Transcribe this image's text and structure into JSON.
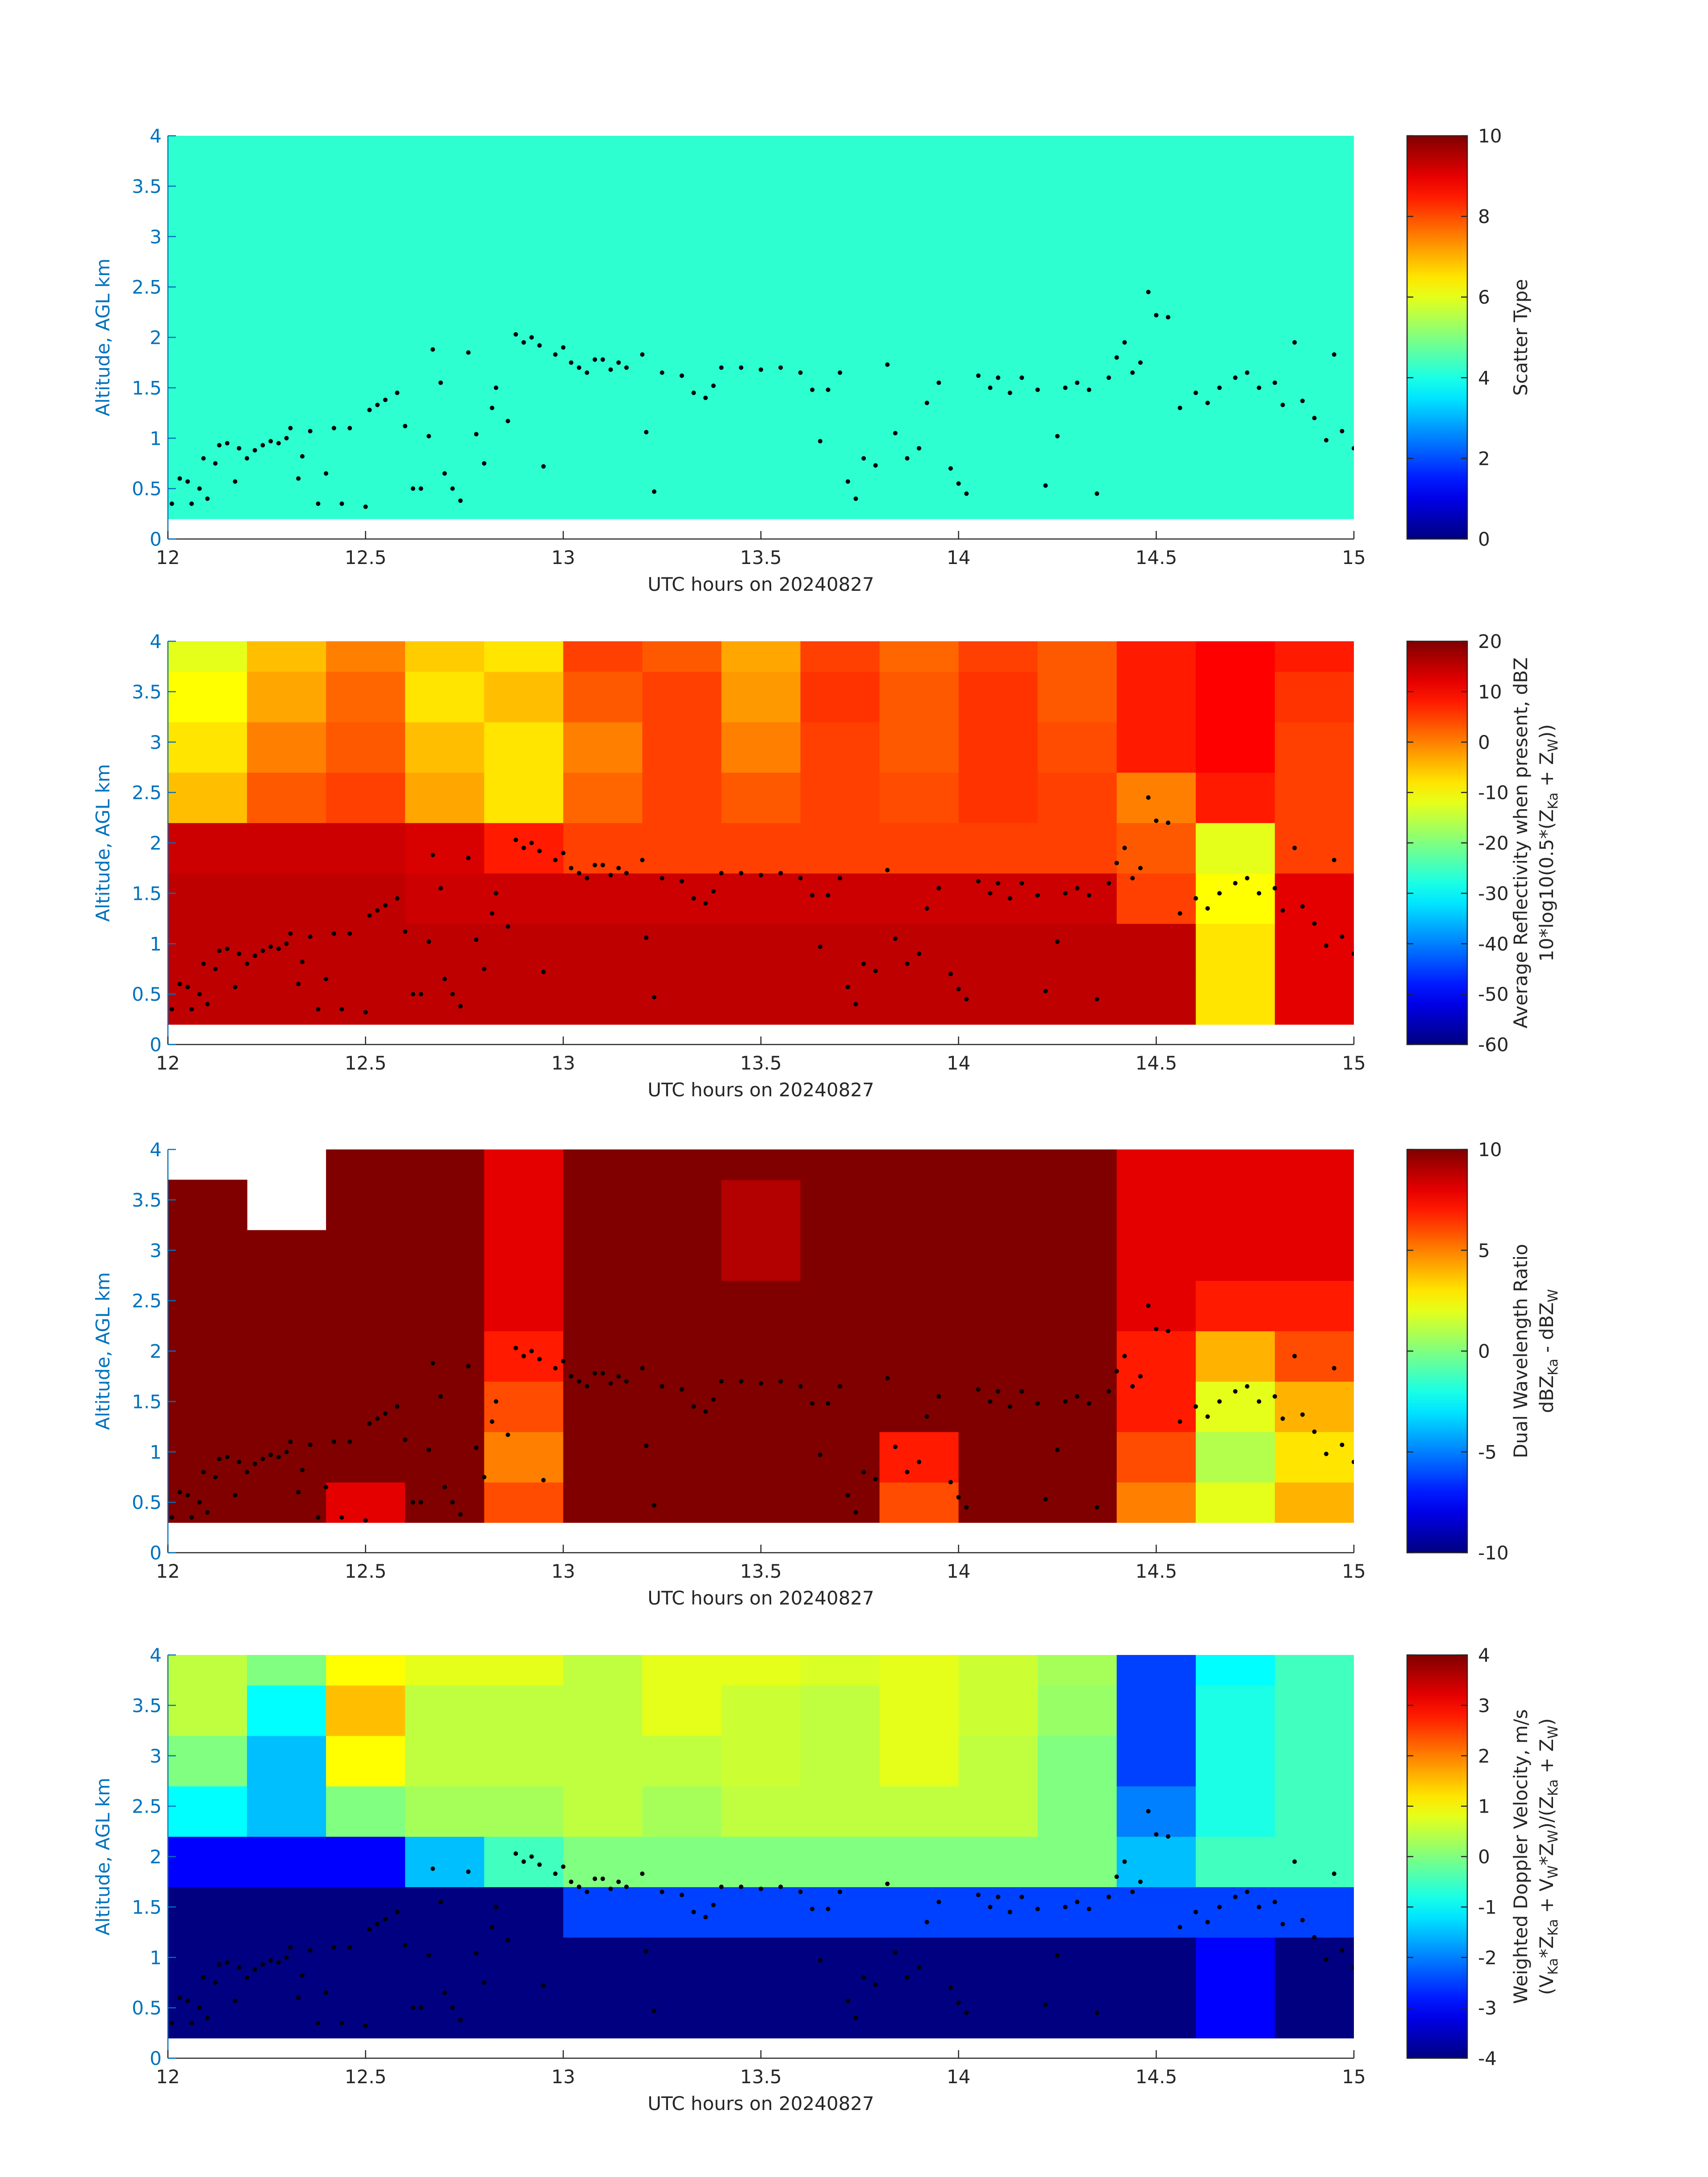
{
  "chart_data": [
    {
      "type": "heatmap",
      "colormap": "jet",
      "xlabel": "UTC hours on 20240827",
      "ylabel": "Altitude, AGL km",
      "colorbar_label": [
        [
          "Scatter Type"
        ]
      ],
      "xlim": [
        12,
        15
      ],
      "xticks": [
        12,
        12.5,
        13,
        13.5,
        14,
        14.5,
        15
      ],
      "ylim": [
        0,
        4
      ],
      "yticks": [
        0,
        0.5,
        1,
        1.5,
        2,
        2.5,
        3,
        3.5,
        4
      ],
      "clim": [
        0,
        10
      ],
      "cticks": [
        0,
        2,
        4,
        6,
        8,
        10
      ],
      "xedges": [
        12,
        12.2,
        12.4,
        12.6,
        12.8,
        13,
        13.2,
        13.4,
        13.6,
        13.8,
        14,
        14.2,
        14.4,
        14.6,
        14.8,
        15
      ],
      "yedges": [
        0.2,
        0.7,
        1.2,
        1.7,
        2.2,
        2.7,
        3.2,
        3.7,
        4
      ],
      "z": [
        [
          4.2,
          4.2,
          4.2,
          4.2,
          4.2,
          4.2,
          4.2,
          4.2,
          4.2,
          4.2,
          4.2,
          4.2,
          4.2,
          4.2,
          4.2
        ],
        [
          4.2,
          4.2,
          4.2,
          4.2,
          4.2,
          4.2,
          4.2,
          4.2,
          4.2,
          4.2,
          4.2,
          4.2,
          4.2,
          4.2,
          4.2
        ],
        [
          4.2,
          4.2,
          4.2,
          4.2,
          4.2,
          4.2,
          4.2,
          4.2,
          4.2,
          4.2,
          4.2,
          4.2,
          4.2,
          4.2,
          4.2
        ],
        [
          4.2,
          4.2,
          4.2,
          4.2,
          4.2,
          4.2,
          4.2,
          4.2,
          4.2,
          4.2,
          4.2,
          4.2,
          4.2,
          4.2,
          4.2
        ],
        [
          4.2,
          4.2,
          4.2,
          4.2,
          4.2,
          4.2,
          4.2,
          4.2,
          4.2,
          4.2,
          4.2,
          4.2,
          4.2,
          4.2,
          4.2
        ],
        [
          4.2,
          4.2,
          4.2,
          4.2,
          4.2,
          4.2,
          4.2,
          4.2,
          4.2,
          4.2,
          4.2,
          4.2,
          4.2,
          4.2,
          4.2
        ],
        [
          4.2,
          4.2,
          4.2,
          4.2,
          4.2,
          4.2,
          4.2,
          4.2,
          4.2,
          4.2,
          4.2,
          4.2,
          4.2,
          4.2,
          4.2
        ],
        [
          4.2,
          4.2,
          4.2,
          4.2,
          4.2,
          4.2,
          4.2,
          4.2,
          4.2,
          4.2,
          4.2,
          4.2,
          4.2,
          4.2,
          4.2
        ]
      ],
      "points": {
        "x": [
          12.01,
          12.03,
          12.05,
          12.06,
          12.08,
          12.09,
          12.1,
          12.12,
          12.13,
          12.15,
          12.17,
          12.18,
          12.2,
          12.22,
          12.24,
          12.26,
          12.28,
          12.3,
          12.31,
          12.33,
          12.34,
          12.36,
          12.38,
          12.4,
          12.42,
          12.44,
          12.46,
          12.5,
          12.51,
          12.53,
          12.55,
          12.58,
          12.6,
          12.62,
          12.64,
          12.66,
          12.67,
          12.69,
          12.7,
          12.72,
          12.74,
          12.76,
          12.78,
          12.8,
          12.82,
          12.83,
          12.86,
          12.88,
          12.9,
          12.92,
          12.94,
          12.95,
          12.98,
          13.0,
          13.02,
          13.04,
          13.06,
          13.08,
          13.1,
          13.12,
          13.14,
          13.16,
          13.2,
          13.21,
          13.23,
          13.25,
          13.3,
          13.33,
          13.36,
          13.38,
          13.4,
          13.45,
          13.5,
          13.55,
          13.6,
          13.63,
          13.65,
          13.67,
          13.7,
          13.72,
          13.74,
          13.76,
          13.79,
          13.82,
          13.84,
          13.87,
          13.9,
          13.92,
          13.95,
          13.98,
          14.0,
          14.02,
          14.05,
          14.08,
          14.1,
          14.13,
          14.16,
          14.2,
          14.22,
          14.25,
          14.27,
          14.3,
          14.33,
          14.35,
          14.38,
          14.4,
          14.42,
          14.44,
          14.46,
          14.48,
          14.5,
          14.53,
          14.56,
          14.6,
          14.63,
          14.66,
          14.7,
          14.73,
          14.76,
          14.8,
          14.82,
          14.85,
          14.87,
          14.9,
          14.93,
          14.95,
          14.97,
          15.0
        ],
        "y": [
          0.35,
          0.6,
          0.57,
          0.35,
          0.5,
          0.8,
          0.4,
          0.75,
          0.93,
          0.95,
          0.57,
          0.9,
          0.8,
          0.88,
          0.93,
          0.97,
          0.95,
          1.0,
          1.1,
          0.6,
          0.82,
          1.07,
          0.35,
          0.65,
          1.1,
          0.35,
          1.1,
          0.32,
          1.28,
          1.33,
          1.38,
          1.45,
          1.12,
          0.5,
          0.5,
          1.02,
          1.88,
          1.55,
          0.65,
          0.5,
          0.38,
          1.85,
          1.04,
          0.75,
          1.3,
          1.5,
          1.17,
          2.03,
          1.95,
          2.0,
          1.92,
          0.72,
          1.83,
          1.9,
          1.75,
          1.7,
          1.65,
          1.78,
          1.78,
          1.68,
          1.75,
          1.7,
          1.83,
          1.06,
          0.47,
          1.65,
          1.62,
          1.45,
          1.4,
          1.52,
          1.7,
          1.7,
          1.68,
          1.7,
          1.65,
          1.48,
          0.97,
          1.48,
          1.65,
          0.57,
          0.4,
          0.8,
          0.73,
          1.73,
          1.05,
          0.8,
          0.9,
          1.35,
          1.55,
          0.7,
          0.55,
          0.45,
          1.62,
          1.5,
          1.6,
          1.45,
          1.6,
          1.48,
          0.53,
          1.02,
          1.5,
          1.55,
          1.48,
          0.45,
          1.6,
          1.8,
          1.95,
          1.65,
          1.75,
          2.45,
          2.22,
          2.2,
          1.3,
          1.45,
          1.35,
          1.5,
          1.6,
          1.65,
          1.5,
          1.55,
          1.33,
          1.95,
          1.37,
          1.2,
          0.98,
          1.83,
          1.07,
          0.9
        ]
      }
    },
    {
      "type": "heatmap",
      "colormap": "jet",
      "xlabel": "UTC hours on 20240827",
      "ylabel": "Altitude, AGL km",
      "colorbar_label": [
        [
          "Average Reflectivity when present, dBZ"
        ],
        [
          "10*log10(0.5*(Z",
          {
            "sub": "Ka"
          },
          " + Z",
          {
            "sub": "W"
          },
          "))"
        ]
      ],
      "xlim": [
        12,
        15
      ],
      "xticks": [
        12,
        12.5,
        13,
        13.5,
        14,
        14.5,
        15
      ],
      "ylim": [
        0,
        4
      ],
      "yticks": [
        0,
        0.5,
        1,
        1.5,
        2,
        2.5,
        3,
        3.5,
        4
      ],
      "clim": [
        -60,
        20
      ],
      "cticks": [
        -60,
        -50,
        -40,
        -30,
        -20,
        -10,
        0,
        10,
        20
      ],
      "xedges": [
        12,
        12.2,
        12.4,
        12.6,
        12.8,
        13,
        13.2,
        13.4,
        13.6,
        13.8,
        14,
        14.2,
        14.4,
        14.6,
        14.8,
        15
      ],
      "yedges": [
        0.2,
        0.7,
        1.2,
        1.7,
        2.2,
        2.7,
        3.2,
        3.7,
        4
      ],
      "z": [
        [
          15,
          15,
          15,
          15,
          15,
          15,
          15,
          15,
          15,
          15,
          15,
          15,
          15,
          -8,
          12
        ],
        [
          15,
          15,
          15,
          15,
          15,
          15,
          15,
          15,
          15,
          15,
          15,
          15,
          15,
          -8,
          12
        ],
        [
          15,
          15,
          15,
          14,
          14,
          14,
          14,
          14,
          14,
          14,
          14,
          14,
          5,
          -10,
          12
        ],
        [
          14,
          14,
          14,
          13,
          8,
          5,
          5,
          5,
          5,
          5,
          5,
          5,
          3,
          -12,
          5
        ],
        [
          -5,
          3,
          5,
          -3,
          -8,
          2,
          5,
          3,
          5,
          4,
          6,
          5,
          0,
          8,
          5
        ],
        [
          -8,
          0,
          3,
          -5,
          -8,
          0,
          5,
          0,
          5,
          3,
          6,
          4,
          8,
          10,
          5
        ],
        [
          -10,
          -3,
          2,
          -8,
          -5,
          3,
          5,
          -2,
          6,
          3,
          6,
          3,
          8,
          10,
          6
        ],
        [
          -12,
          -5,
          0,
          -6,
          -8,
          5,
          3,
          -3,
          5,
          2,
          5,
          3,
          8,
          10,
          8
        ]
      ]
    },
    {
      "type": "heatmap",
      "colormap": "jet",
      "xlabel": "UTC hours on 20240827",
      "ylabel": "Altitude, AGL km",
      "colorbar_label": [
        [
          "Dual Wavelength Ratio"
        ],
        [
          "dBZ",
          {
            "sub": "Ka"
          },
          " - dBZ",
          {
            "sub": "W"
          }
        ]
      ],
      "xlim": [
        12,
        15
      ],
      "xticks": [
        12,
        12.5,
        13,
        13.5,
        14,
        14.5,
        15
      ],
      "ylim": [
        0,
        4
      ],
      "yticks": [
        0,
        0.5,
        1,
        1.5,
        2,
        2.5,
        3,
        3.5,
        4
      ],
      "clim": [
        -10,
        10
      ],
      "cticks": [
        -10,
        -5,
        0,
        5,
        10
      ],
      "xedges": [
        12,
        12.2,
        12.4,
        12.6,
        12.8,
        13,
        13.2,
        13.4,
        13.6,
        13.8,
        14,
        14.2,
        14.4,
        14.6,
        14.8,
        15
      ],
      "yedges": [
        0.3,
        0.7,
        1.2,
        1.7,
        2.2,
        2.7,
        3.2,
        3.7,
        4
      ],
      "z": [
        [
          10,
          10,
          8,
          10,
          6,
          10,
          10,
          10,
          10,
          6,
          10,
          10,
          5,
          2,
          4
        ],
        [
          10,
          10,
          10,
          10,
          5,
          10,
          10,
          10,
          10,
          7,
          10,
          10,
          6,
          1,
          3
        ],
        [
          10,
          10,
          10,
          10,
          6,
          10,
          10,
          10,
          10,
          10,
          10,
          10,
          7,
          2,
          4
        ],
        [
          10,
          10,
          10,
          10,
          7,
          10,
          10,
          10,
          10,
          10,
          10,
          10,
          7,
          4,
          6
        ],
        [
          10,
          10,
          10,
          10,
          8,
          10,
          10,
          10,
          10,
          10,
          10,
          10,
          8,
          7,
          7
        ],
        [
          10,
          10,
          10,
          10,
          8,
          10,
          10,
          9,
          10,
          10,
          10,
          10,
          8,
          8,
          8
        ],
        [
          10,
          null,
          10,
          10,
          8,
          10,
          10,
          9,
          10,
          10,
          10,
          10,
          8,
          8,
          8
        ],
        [
          null,
          null,
          10,
          10,
          8,
          10,
          10,
          10,
          10,
          10,
          10,
          10,
          8,
          8,
          8
        ]
      ]
    },
    {
      "type": "heatmap",
      "colormap": "jet",
      "xlabel": "UTC hours on 20240827",
      "ylabel": "Altitude, AGL km",
      "colorbar_label": [
        [
          "Weighted Doppler Velocity, m/s"
        ],
        [
          "(V",
          {
            "sub": "Ka"
          },
          "*Z",
          {
            "sub": "Ka"
          },
          " + V",
          {
            "sub": "W"
          },
          "*Z",
          {
            "sub": "W"
          },
          ")/(Z",
          {
            "sub": "Ka"
          },
          " + Z",
          {
            "sub": "W"
          },
          ")"
        ]
      ],
      "xlim": [
        12,
        15
      ],
      "xticks": [
        12,
        12.5,
        13,
        13.5,
        14,
        14.5,
        15
      ],
      "ylim": [
        0,
        4
      ],
      "yticks": [
        0,
        0.5,
        1,
        1.5,
        2,
        2.5,
        3,
        3.5,
        4
      ],
      "clim": [
        -4,
        4
      ],
      "cticks": [
        -4,
        -3,
        -2,
        -1,
        0,
        1,
        2,
        3,
        4
      ],
      "xedges": [
        12,
        12.2,
        12.4,
        12.6,
        12.8,
        13,
        13.2,
        13.4,
        13.6,
        13.8,
        14,
        14.2,
        14.4,
        14.6,
        14.8,
        15
      ],
      "yedges": [
        0.2,
        0.7,
        1.2,
        1.7,
        2.2,
        2.7,
        3.2,
        3.7,
        4
      ],
      "z": [
        [
          -4,
          -4,
          -4,
          -4,
          -4,
          -4,
          -4,
          -4,
          -4,
          -4,
          -4,
          -4,
          -4,
          -3,
          -4
        ],
        [
          -4,
          -4,
          -4,
          -4,
          -4,
          -4,
          -4,
          -4,
          -4,
          -4,
          -4,
          -4,
          -4,
          -3,
          -4
        ],
        [
          -4,
          -4,
          -4,
          -4,
          -4,
          -2.5,
          -2.5,
          -2.5,
          -2.5,
          -2.5,
          -2.5,
          -2.5,
          -2.5,
          -2.5,
          -2.5
        ],
        [
          -3,
          -3,
          -3,
          -1.5,
          -0.5,
          0,
          0,
          0,
          0,
          0,
          0,
          0,
          -1.5,
          -0.5,
          -0.5
        ],
        [
          -1,
          -1.5,
          0,
          0.3,
          0.3,
          0.5,
          0.3,
          0.5,
          0.5,
          0.5,
          0.5,
          0,
          -2,
          -0.8,
          -0.5
        ],
        [
          0,
          -1.5,
          1,
          0.5,
          0.5,
          0.5,
          0.5,
          0.6,
          0.5,
          0.8,
          0.5,
          0,
          -2.5,
          -0.8,
          -0.5
        ],
        [
          0.5,
          -1,
          1.5,
          0.5,
          0.5,
          0.5,
          0.8,
          0.6,
          0.5,
          0.8,
          0.6,
          0.2,
          -2.5,
          -0.8,
          -0.5
        ],
        [
          0.5,
          0,
          1,
          0.8,
          0.8,
          0.5,
          0.8,
          0.8,
          0.7,
          0.8,
          0.6,
          0.3,
          -2.5,
          -1,
          -0.5
        ]
      ]
    }
  ]
}
